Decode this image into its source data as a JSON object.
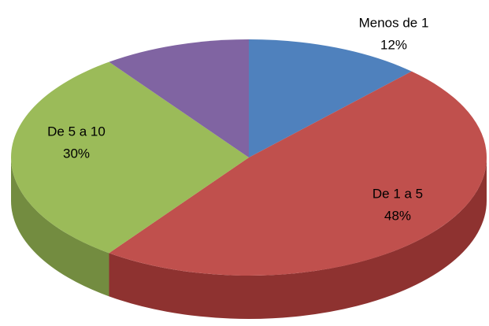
{
  "chart_data": {
    "type": "pie",
    "categories": [
      "Menos de 1",
      "De 1 a 5",
      "De 5 a 10",
      null
    ],
    "values": [
      12,
      48,
      30,
      10
    ],
    "value_labels": [
      "12%",
      "48%",
      "30%",
      null
    ],
    "colors": [
      "#4f81bd",
      "#c0504d",
      "#9bbb59",
      "#8064a2"
    ],
    "side_colors": [
      "#3a6190",
      "#8e3230",
      "#738c40",
      "#5e4a78"
    ]
  }
}
